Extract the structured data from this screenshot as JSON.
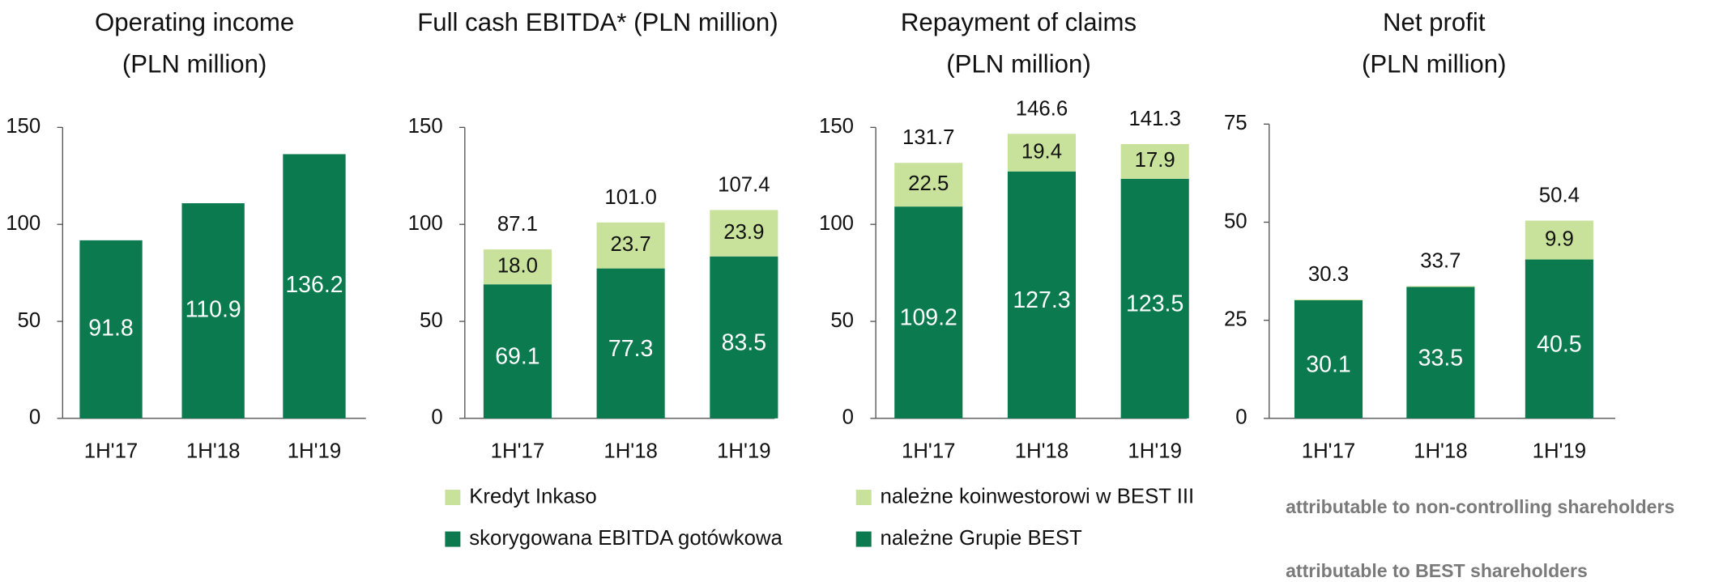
{
  "chart_data": [
    {
      "type": "bar",
      "title": "Operating income",
      "subtitle": "(PLN million)",
      "categories": [
        "1H'17",
        "1H'18",
        "1H'19"
      ],
      "values": [
        91.8,
        110.9,
        136.2
      ],
      "color": "#0b7a4f",
      "ylim": [
        0,
        150
      ],
      "yticks": [
        0,
        50,
        100,
        150
      ]
    },
    {
      "type": "stacked_bar",
      "title": "Full cash EBITDA* (PLN million)",
      "categories": [
        "1H'17",
        "1H'18",
        "1H'19"
      ],
      "series": [
        {
          "name": "skorygowana EBITDA gotówkowa",
          "color": "#0b7a4f",
          "values": [
            69.1,
            77.3,
            83.5
          ]
        },
        {
          "name": "Kredyt Inkaso",
          "color": "#c9e29b",
          "values": [
            18.0,
            23.7,
            23.9
          ],
          "value_labels": [
            "18.0",
            "23.7",
            "23.9"
          ]
        }
      ],
      "totals": [
        87.1,
        101.0,
        107.4
      ],
      "total_labels": [
        "87.1",
        "101.0",
        "107.4"
      ],
      "ylim": [
        0,
        150
      ],
      "yticks": [
        0,
        50,
        100,
        150
      ],
      "legend_swatches": true
    },
    {
      "type": "stacked_bar",
      "title": "Repayment of claims",
      "subtitle": "(PLN million)",
      "categories": [
        "1H'17",
        "1H'18",
        "1H'19"
      ],
      "series": [
        {
          "name": "należne Grupie BEST",
          "color": "#0b7a4f",
          "values": [
            109.2,
            127.3,
            123.5
          ]
        },
        {
          "name": "należne koinwestorowi w BEST III",
          "color": "#c9e29b",
          "values": [
            22.5,
            19.4,
            17.9
          ]
        }
      ],
      "totals": [
        131.7,
        146.6,
        141.3
      ],
      "ylim": [
        0,
        150
      ],
      "yticks": [
        0,
        50,
        100,
        150
      ],
      "legend_swatches": true
    },
    {
      "type": "stacked_bar",
      "title": "Net profit",
      "subtitle": "(PLN million)",
      "categories": [
        "1H'17",
        "1H'18",
        "1H'19"
      ],
      "series": [
        {
          "name": "attributable to BEST shareholders",
          "color": "#0b7a4f",
          "values": [
            30.1,
            33.5,
            40.5
          ]
        },
        {
          "name": "attributable to non-controlling shareholders",
          "color": "#c9e29b",
          "values": [
            0.2,
            0.2,
            9.9
          ],
          "value_labels": [
            null,
            null,
            "9.9"
          ]
        }
      ],
      "totals": [
        30.3,
        33.7,
        50.4
      ],
      "ylim": [
        0,
        75
      ],
      "yticks": [
        0,
        25,
        50,
        75
      ],
      "legend_swatches": false
    }
  ]
}
